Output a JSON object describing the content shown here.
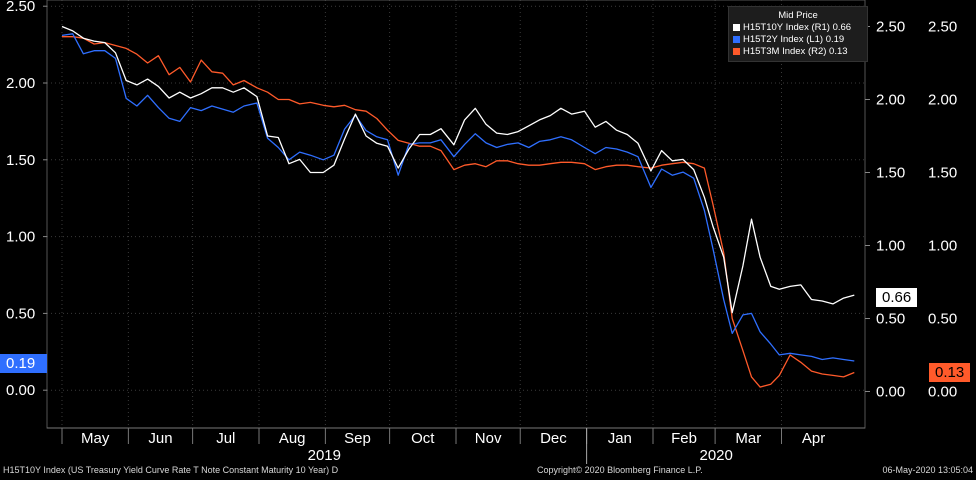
{
  "chart_data": {
    "type": "line",
    "left_axis": {
      "ticks": [
        "2.50",
        "2.00",
        "1.50",
        "1.00",
        "0.50",
        "0.00"
      ],
      "ylim": [
        -0.25,
        2.5
      ]
    },
    "right_axis": {
      "ticks": [
        "2.50",
        "2.00",
        "1.50",
        "1.00",
        "0.50",
        "0.00"
      ],
      "ylim": [
        -0.25,
        2.75
      ]
    },
    "x_months": [
      "May",
      "Jun",
      "Jul",
      "Aug",
      "Sep",
      "Oct",
      "Nov",
      "Dec",
      "Jan",
      "Feb",
      "Mar",
      "Apr"
    ],
    "x_years": [
      "2019",
      "2020"
    ],
    "legend": {
      "title": "Mid Price",
      "entries": [
        {
          "label": "H15T10Y Index  (R1) 0.66",
          "color": "#ffffff"
        },
        {
          "label": "H15T2Y Index  (L1) 0.19",
          "color": "#2f6fff"
        },
        {
          "label": "H15T3M Index  (R2) 0.13",
          "color": "#ff5a2a"
        }
      ]
    },
    "last_value_tags": [
      {
        "value": "0.66",
        "side": "right",
        "bg": "#ffffff",
        "fg": "#000000"
      },
      {
        "value": "0.19",
        "side": "left",
        "bg": "#2f6fff",
        "fg": "#ffffff"
      },
      {
        "value": "0.13",
        "side": "right",
        "bg": "#ff5a2a",
        "fg": "#000000"
      }
    ],
    "series": [
      {
        "name": "H15T10Y Index",
        "axis": "right",
        "color": "#ffffff",
        "points": [
          [
            "2019-05-01",
            2.5
          ],
          [
            "2019-05-06",
            2.47
          ],
          [
            "2019-05-11",
            2.42
          ],
          [
            "2019-05-16",
            2.4
          ],
          [
            "2019-05-21",
            2.39
          ],
          [
            "2019-05-26",
            2.32
          ],
          [
            "2019-05-31",
            2.13
          ],
          [
            "2019-06-05",
            2.1
          ],
          [
            "2019-06-10",
            2.14
          ],
          [
            "2019-06-15",
            2.09
          ],
          [
            "2019-06-20",
            2.01
          ],
          [
            "2019-06-25",
            2.05
          ],
          [
            "2019-06-30",
            2.01
          ],
          [
            "2019-07-05",
            2.04
          ],
          [
            "2019-07-10",
            2.08
          ],
          [
            "2019-07-15",
            2.08
          ],
          [
            "2019-07-20",
            2.05
          ],
          [
            "2019-07-25",
            2.08
          ],
          [
            "2019-07-31",
            2.02
          ],
          [
            "2019-08-05",
            1.75
          ],
          [
            "2019-08-10",
            1.74
          ],
          [
            "2019-08-15",
            1.56
          ],
          [
            "2019-08-20",
            1.59
          ],
          [
            "2019-08-25",
            1.5
          ],
          [
            "2019-08-31",
            1.5
          ],
          [
            "2019-09-05",
            1.55
          ],
          [
            "2019-09-10",
            1.73
          ],
          [
            "2019-09-15",
            1.9
          ],
          [
            "2019-09-20",
            1.75
          ],
          [
            "2019-09-25",
            1.7
          ],
          [
            "2019-09-30",
            1.68
          ],
          [
            "2019-10-05",
            1.53
          ],
          [
            "2019-10-10",
            1.66
          ],
          [
            "2019-10-15",
            1.76
          ],
          [
            "2019-10-20",
            1.76
          ],
          [
            "2019-10-25",
            1.8
          ],
          [
            "2019-10-31",
            1.69
          ],
          [
            "2019-11-05",
            1.86
          ],
          [
            "2019-11-10",
            1.94
          ],
          [
            "2019-11-15",
            1.83
          ],
          [
            "2019-11-20",
            1.77
          ],
          [
            "2019-11-25",
            1.76
          ],
          [
            "2019-11-30",
            1.78
          ],
          [
            "2019-12-05",
            1.82
          ],
          [
            "2019-12-10",
            1.86
          ],
          [
            "2019-12-15",
            1.89
          ],
          [
            "2019-12-20",
            1.94
          ],
          [
            "2019-12-25",
            1.9
          ],
          [
            "2019-12-31",
            1.92
          ],
          [
            "2020-01-05",
            1.81
          ],
          [
            "2020-01-10",
            1.85
          ],
          [
            "2020-01-15",
            1.79
          ],
          [
            "2020-01-20",
            1.76
          ],
          [
            "2020-01-25",
            1.7
          ],
          [
            "2020-01-31",
            1.51
          ],
          [
            "2020-02-05",
            1.65
          ],
          [
            "2020-02-10",
            1.58
          ],
          [
            "2020-02-15",
            1.59
          ],
          [
            "2020-02-20",
            1.52
          ],
          [
            "2020-02-25",
            1.33
          ],
          [
            "2020-02-29",
            1.13
          ],
          [
            "2020-03-05",
            0.92
          ],
          [
            "2020-03-09",
            0.54
          ],
          [
            "2020-03-14",
            0.86
          ],
          [
            "2020-03-18",
            1.18
          ],
          [
            "2020-03-22",
            0.92
          ],
          [
            "2020-03-27",
            0.72
          ],
          [
            "2020-03-31",
            0.7
          ],
          [
            "2020-04-05",
            0.72
          ],
          [
            "2020-04-10",
            0.73
          ],
          [
            "2020-04-15",
            0.63
          ],
          [
            "2020-04-20",
            0.62
          ],
          [
            "2020-04-25",
            0.6
          ],
          [
            "2020-04-30",
            0.64
          ],
          [
            "2020-05-05",
            0.66
          ]
        ]
      },
      {
        "name": "H15T2Y Index",
        "axis": "left",
        "color": "#2f6fff",
        "points": [
          [
            "2019-05-01",
            2.31
          ],
          [
            "2019-05-06",
            2.32
          ],
          [
            "2019-05-11",
            2.19
          ],
          [
            "2019-05-16",
            2.21
          ],
          [
            "2019-05-21",
            2.21
          ],
          [
            "2019-05-26",
            2.16
          ],
          [
            "2019-05-31",
            1.9
          ],
          [
            "2019-06-05",
            1.85
          ],
          [
            "2019-06-10",
            1.92
          ],
          [
            "2019-06-15",
            1.84
          ],
          [
            "2019-06-20",
            1.77
          ],
          [
            "2019-06-25",
            1.75
          ],
          [
            "2019-06-30",
            1.84
          ],
          [
            "2019-07-05",
            1.82
          ],
          [
            "2019-07-10",
            1.85
          ],
          [
            "2019-07-15",
            1.83
          ],
          [
            "2019-07-20",
            1.81
          ],
          [
            "2019-07-25",
            1.85
          ],
          [
            "2019-07-31",
            1.87
          ],
          [
            "2019-08-05",
            1.64
          ],
          [
            "2019-08-10",
            1.58
          ],
          [
            "2019-08-15",
            1.5
          ],
          [
            "2019-08-20",
            1.55
          ],
          [
            "2019-08-25",
            1.53
          ],
          [
            "2019-08-31",
            1.5
          ],
          [
            "2019-09-05",
            1.53
          ],
          [
            "2019-09-10",
            1.7
          ],
          [
            "2019-09-15",
            1.79
          ],
          [
            "2019-09-20",
            1.69
          ],
          [
            "2019-09-25",
            1.65
          ],
          [
            "2019-09-30",
            1.63
          ],
          [
            "2019-10-05",
            1.4
          ],
          [
            "2019-10-10",
            1.6
          ],
          [
            "2019-10-15",
            1.61
          ],
          [
            "2019-10-20",
            1.61
          ],
          [
            "2019-10-25",
            1.63
          ],
          [
            "2019-10-31",
            1.52
          ],
          [
            "2019-11-05",
            1.6
          ],
          [
            "2019-11-10",
            1.67
          ],
          [
            "2019-11-15",
            1.61
          ],
          [
            "2019-11-20",
            1.58
          ],
          [
            "2019-11-25",
            1.6
          ],
          [
            "2019-11-30",
            1.61
          ],
          [
            "2019-12-05",
            1.58
          ],
          [
            "2019-12-10",
            1.62
          ],
          [
            "2019-12-15",
            1.63
          ],
          [
            "2019-12-20",
            1.65
          ],
          [
            "2019-12-25",
            1.63
          ],
          [
            "2019-12-31",
            1.58
          ],
          [
            "2020-01-05",
            1.54
          ],
          [
            "2020-01-10",
            1.58
          ],
          [
            "2020-01-15",
            1.57
          ],
          [
            "2020-01-20",
            1.55
          ],
          [
            "2020-01-25",
            1.52
          ],
          [
            "2020-01-31",
            1.32
          ],
          [
            "2020-02-05",
            1.44
          ],
          [
            "2020-02-10",
            1.4
          ],
          [
            "2020-02-15",
            1.42
          ],
          [
            "2020-02-20",
            1.38
          ],
          [
            "2020-02-25",
            1.17
          ],
          [
            "2020-02-29",
            0.92
          ],
          [
            "2020-03-05",
            0.59
          ],
          [
            "2020-03-09",
            0.37
          ],
          [
            "2020-03-14",
            0.49
          ],
          [
            "2020-03-18",
            0.5
          ],
          [
            "2020-03-22",
            0.38
          ],
          [
            "2020-03-27",
            0.3
          ],
          [
            "2020-03-31",
            0.23
          ],
          [
            "2020-04-05",
            0.24
          ],
          [
            "2020-04-10",
            0.23
          ],
          [
            "2020-04-15",
            0.22
          ],
          [
            "2020-04-20",
            0.2
          ],
          [
            "2020-04-25",
            0.21
          ],
          [
            "2020-04-30",
            0.2
          ],
          [
            "2020-05-05",
            0.19
          ]
        ]
      },
      {
        "name": "H15T3M Index",
        "axis": "right",
        "color": "#ff5a2a",
        "points": [
          [
            "2019-05-01",
            2.43
          ],
          [
            "2019-05-06",
            2.43
          ],
          [
            "2019-05-11",
            2.42
          ],
          [
            "2019-05-16",
            2.38
          ],
          [
            "2019-05-21",
            2.39
          ],
          [
            "2019-05-26",
            2.37
          ],
          [
            "2019-05-31",
            2.35
          ],
          [
            "2019-06-05",
            2.31
          ],
          [
            "2019-06-10",
            2.25
          ],
          [
            "2019-06-15",
            2.3
          ],
          [
            "2019-06-20",
            2.17
          ],
          [
            "2019-06-25",
            2.22
          ],
          [
            "2019-06-30",
            2.12
          ],
          [
            "2019-07-05",
            2.27
          ],
          [
            "2019-07-10",
            2.19
          ],
          [
            "2019-07-15",
            2.18
          ],
          [
            "2019-07-20",
            2.1
          ],
          [
            "2019-07-25",
            2.13
          ],
          [
            "2019-07-31",
            2.08
          ],
          [
            "2019-08-05",
            2.05
          ],
          [
            "2019-08-10",
            2.0
          ],
          [
            "2019-08-15",
            2.0
          ],
          [
            "2019-08-20",
            1.97
          ],
          [
            "2019-08-25",
            1.98
          ],
          [
            "2019-08-31",
            1.96
          ],
          [
            "2019-09-05",
            1.95
          ],
          [
            "2019-09-10",
            1.96
          ],
          [
            "2019-09-15",
            1.93
          ],
          [
            "2019-09-20",
            1.92
          ],
          [
            "2019-09-25",
            1.87
          ],
          [
            "2019-09-30",
            1.79
          ],
          [
            "2019-10-05",
            1.72
          ],
          [
            "2019-10-10",
            1.7
          ],
          [
            "2019-10-15",
            1.68
          ],
          [
            "2019-10-20",
            1.68
          ],
          [
            "2019-10-25",
            1.65
          ],
          [
            "2019-10-31",
            1.52
          ],
          [
            "2019-11-05",
            1.55
          ],
          [
            "2019-11-10",
            1.56
          ],
          [
            "2019-11-15",
            1.54
          ],
          [
            "2019-11-20",
            1.58
          ],
          [
            "2019-11-25",
            1.58
          ],
          [
            "2019-11-30",
            1.56
          ],
          [
            "2019-12-05",
            1.55
          ],
          [
            "2019-12-10",
            1.55
          ],
          [
            "2019-12-15",
            1.56
          ],
          [
            "2019-12-20",
            1.57
          ],
          [
            "2019-12-25",
            1.57
          ],
          [
            "2019-12-31",
            1.56
          ],
          [
            "2020-01-05",
            1.52
          ],
          [
            "2020-01-10",
            1.54
          ],
          [
            "2020-01-15",
            1.55
          ],
          [
            "2020-01-20",
            1.55
          ],
          [
            "2020-01-25",
            1.54
          ],
          [
            "2020-01-31",
            1.53
          ],
          [
            "2020-02-05",
            1.55
          ],
          [
            "2020-02-10",
            1.56
          ],
          [
            "2020-02-15",
            1.57
          ],
          [
            "2020-02-20",
            1.56
          ],
          [
            "2020-02-25",
            1.53
          ],
          [
            "2020-02-29",
            1.28
          ],
          [
            "2020-03-05",
            0.95
          ],
          [
            "2020-03-09",
            0.5
          ],
          [
            "2020-03-14",
            0.28
          ],
          [
            "2020-03-18",
            0.1
          ],
          [
            "2020-03-22",
            0.03
          ],
          [
            "2020-03-27",
            0.05
          ],
          [
            "2020-03-31",
            0.11
          ],
          [
            "2020-04-05",
            0.25
          ],
          [
            "2020-04-10",
            0.2
          ],
          [
            "2020-04-15",
            0.14
          ],
          [
            "2020-04-20",
            0.12
          ],
          [
            "2020-04-25",
            0.11
          ],
          [
            "2020-04-30",
            0.1
          ],
          [
            "2020-05-05",
            0.13
          ]
        ]
      }
    ]
  },
  "footer": {
    "left": "H15T10Y Index (US Treasury Yield Curve Rate T Note Constant Maturity 10 Year)  D",
    "center": "Copyright© 2020 Bloomberg Finance L.P.",
    "right": "06-May-2020 13:05:04"
  }
}
